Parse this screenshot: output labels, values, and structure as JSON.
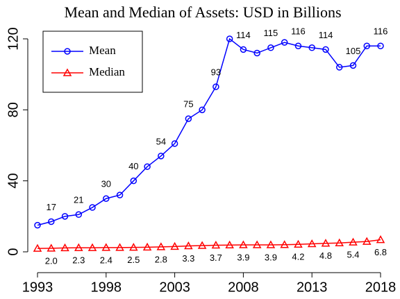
{
  "chart_data": {
    "type": "line",
    "title": "Mean and Median of Assets: USD in Billions",
    "x": [
      1993,
      1994,
      1995,
      1996,
      1997,
      1998,
      1999,
      2000,
      2001,
      2002,
      2003,
      2004,
      2005,
      2006,
      2007,
      2008,
      2009,
      2010,
      2011,
      2012,
      2013,
      2014,
      2015,
      2016,
      2017,
      2018
    ],
    "series": [
      {
        "name": "Mean",
        "color": "#0000ff",
        "marker": "circle",
        "values": [
          15,
          17,
          20,
          21,
          25,
          30,
          32,
          40,
          48,
          54,
          61,
          75,
          80,
          93,
          120,
          114,
          112,
          115,
          118,
          116,
          115,
          114,
          104,
          105,
          116,
          116
        ],
        "value_labels": [
          null,
          "17",
          null,
          "21",
          null,
          "30",
          null,
          "40",
          null,
          "54",
          null,
          "75",
          null,
          "93",
          null,
          "114",
          null,
          "115",
          null,
          "116",
          null,
          "114",
          null,
          "105",
          null,
          "116"
        ]
      },
      {
        "name": "Median",
        "color": "#ff0000",
        "marker": "triangle",
        "values": [
          1.9,
          2.0,
          2.2,
          2.3,
          2.3,
          2.4,
          2.4,
          2.5,
          2.6,
          2.8,
          3.0,
          3.3,
          3.5,
          3.7,
          3.8,
          3.9,
          3.9,
          3.9,
          4.0,
          4.2,
          4.5,
          4.8,
          5.0,
          5.4,
          5.8,
          6.8
        ],
        "value_labels": [
          null,
          "2.0",
          null,
          "2.3",
          null,
          "2.4",
          null,
          "2.5",
          null,
          "2.8",
          null,
          "3.3",
          null,
          "3.7",
          null,
          "3.9",
          null,
          "3.9",
          null,
          "4.2",
          null,
          "4.8",
          null,
          "5.4",
          null,
          "6.8"
        ]
      }
    ],
    "xlim": [
      1993,
      2018
    ],
    "xticks": [
      1993,
      1998,
      2003,
      2008,
      2013,
      2018
    ],
    "ylim": [
      0,
      120
    ],
    "yticks": [
      0,
      40,
      80,
      120
    ],
    "legend": "upper left"
  }
}
